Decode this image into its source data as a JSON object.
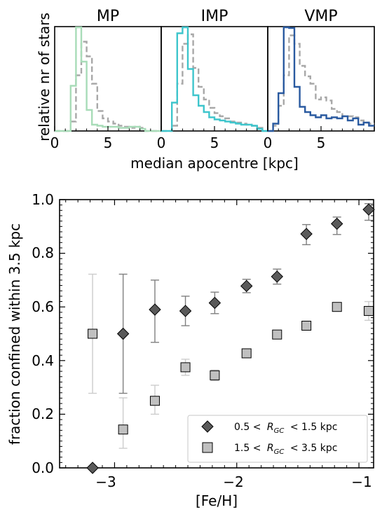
{
  "chart_data": [
    {
      "type": "histogram",
      "panels": [
        {
          "title": "MP",
          "color": "#a8dcb8",
          "xlim": [
            0,
            10
          ],
          "bin_edges": [
            0,
            0.5,
            1,
            1.5,
            2,
            2.5,
            3,
            3.5,
            4,
            4.5,
            5,
            5.5,
            6,
            6.5,
            7,
            7.5,
            8,
            8.5,
            9,
            9.5,
            10
          ],
          "solid_values": [
            0,
            0,
            0,
            0.43,
            1.0,
            0.66,
            0.2,
            0.06,
            0.05,
            0.04,
            0.04,
            0.04,
            0.03,
            0.03,
            0.04,
            0.04,
            0.02,
            0,
            0,
            0
          ],
          "dashed_values": [
            0,
            0,
            0,
            0.09,
            0.53,
            0.85,
            0.71,
            0.45,
            0.19,
            0.12,
            0.09,
            0.07,
            0.05,
            0.04,
            0.03,
            0.04,
            0.03,
            0,
            0,
            0
          ]
        },
        {
          "title": "IMP",
          "color": "#3ec5cc",
          "xlim": [
            0,
            10
          ],
          "bin_edges": [
            0,
            0.5,
            1,
            1.5,
            2,
            2.5,
            3,
            3.5,
            4,
            4.5,
            5,
            5.5,
            6,
            6.5,
            7,
            7.5,
            8,
            8.5,
            9,
            9.5,
            10
          ],
          "solid_values": [
            0,
            0,
            0.27,
            0.93,
            1.0,
            0.59,
            0.34,
            0.24,
            0.18,
            0.13,
            0.11,
            0.1,
            0.09,
            0.08,
            0.07,
            0.06,
            0.06,
            0.05,
            0.02,
            0
          ],
          "dashed_values": [
            0,
            0,
            0.05,
            0.45,
            0.83,
            0.92,
            0.6,
            0.42,
            0.3,
            0.22,
            0.17,
            0.14,
            0.12,
            0.09,
            0.08,
            0.07,
            0.06,
            0.05,
            0.03,
            0
          ]
        },
        {
          "title": "VMP",
          "color": "#2a5aa0",
          "xlim": [
            0,
            10
          ],
          "bin_edges": [
            0,
            0.5,
            1,
            1.5,
            2,
            2.5,
            3,
            3.5,
            4,
            4.5,
            5,
            5.5,
            6,
            6.5,
            7,
            7.5,
            8,
            8.5,
            9,
            9.5,
            10
          ],
          "solid_values": [
            0,
            0.07,
            0.36,
            1.0,
            0.98,
            0.42,
            0.23,
            0.18,
            0.15,
            0.13,
            0.15,
            0.12,
            0.13,
            0.12,
            0.14,
            0.1,
            0.12,
            0.06,
            0.08,
            0.05
          ],
          "dashed_values": [
            0,
            0.05,
            0.24,
            0.53,
            0.91,
            0.83,
            0.62,
            0.52,
            0.45,
            0.3,
            0.32,
            0.29,
            0.21,
            0.18,
            0.14,
            0.14,
            0.13,
            0.1,
            0.08,
            0.07
          ]
        }
      ],
      "dashed_color": "#a8a8a8",
      "x_ticks": [
        "0",
        "5"
      ],
      "xlabel": "median apocentre [kpc]",
      "ylabel": "relative nr of stars"
    },
    {
      "type": "scatter",
      "xlabel": "[Fe/H]",
      "ylabel": "fraction confined within 3.5 kpc",
      "xlim": [
        -3.45,
        -0.88
      ],
      "ylim": [
        0.0,
        1.0
      ],
      "x_ticks": [
        "−3",
        "−2",
        "−1"
      ],
      "y_ticks": [
        "0.0",
        "0.2",
        "0.4",
        "0.6",
        "0.8",
        "1.0"
      ],
      "legend_position": "bottom-right",
      "series": [
        {
          "name": "0.5 < R_GC < 1.5 kpc",
          "name_parts": {
            "left": "0.5 <",
            "R": "R",
            "sub": "GC",
            "right": "< 1.5 kpc"
          },
          "marker": "diamond",
          "color": "#5a5a5a",
          "err_color": "#808080",
          "x": [
            -3.18,
            -2.93,
            -2.67,
            -2.42,
            -2.18,
            -1.92,
            -1.67,
            -1.43,
            -1.18,
            -0.92
          ],
          "y": [
            0.0,
            0.5,
            0.59,
            0.585,
            0.615,
            0.678,
            0.713,
            0.872,
            0.91,
            0.963
          ],
          "err_low": [
            0.0,
            0.222,
            0.122,
            0.055,
            0.04,
            0.025,
            0.028,
            0.04,
            0.04,
            0.04
          ],
          "err_high": [
            0.0,
            0.222,
            0.11,
            0.055,
            0.04,
            0.025,
            0.028,
            0.035,
            0.025,
            0.022
          ]
        },
        {
          "name": "1.5 < R_GC < 3.5 kpc",
          "name_parts": {
            "left": "1.5 <",
            "R": "R",
            "sub": "GC",
            "right": "< 3.5 kpc"
          },
          "marker": "square",
          "color": "#c0c0c0",
          "err_color": "#cccccc",
          "x": [
            -3.18,
            -2.93,
            -2.67,
            -2.42,
            -2.18,
            -1.92,
            -1.67,
            -1.43,
            -1.18,
            -0.92
          ],
          "y": [
            0.5,
            0.143,
            0.25,
            0.375,
            0.345,
            0.427,
            0.497,
            0.53,
            0.6,
            0.585
          ],
          "err_low": [
            0.222,
            0.07,
            0.05,
            0.03,
            0.02,
            0.015,
            0.015,
            0.015,
            0.015,
            0.035
          ],
          "err_high": [
            0.222,
            0.118,
            0.058,
            0.03,
            0.02,
            0.015,
            0.015,
            0.015,
            0.015,
            0.035
          ]
        }
      ]
    }
  ]
}
